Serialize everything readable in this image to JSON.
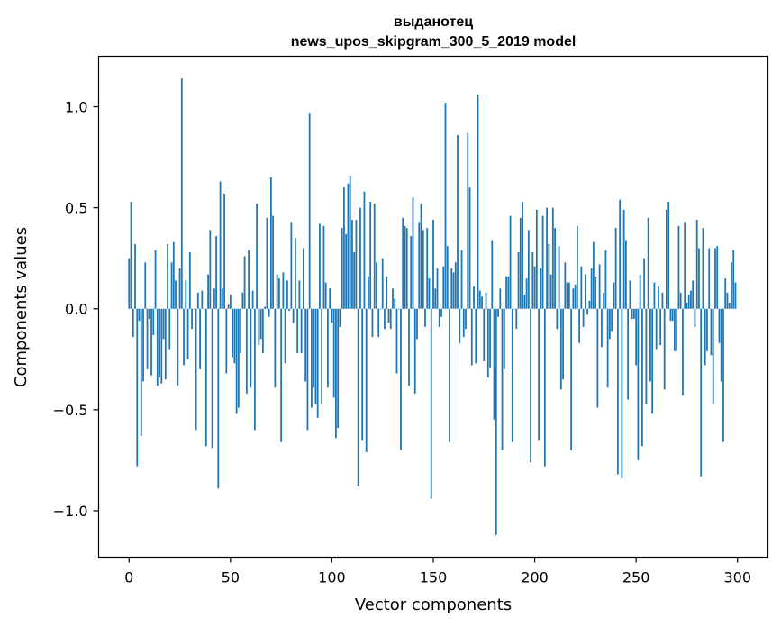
{
  "chart_data": {
    "type": "bar",
    "title": "выданотец",
    "subtitle": "news_upos_skipgram_300_5_2019 model",
    "xlabel": "Vector components",
    "ylabel": "Components values",
    "xlim": [
      -15,
      315
    ],
    "ylim": [
      -1.23,
      1.25
    ],
    "xticks": [
      0,
      50,
      100,
      150,
      200,
      250,
      300
    ],
    "yticks": [
      -1.0,
      -0.5,
      0.0,
      0.5,
      1.0
    ],
    "xtick_labels": [
      "0",
      "50",
      "100",
      "150",
      "200",
      "250",
      "300"
    ],
    "ytick_labels": [
      "−1.0",
      "−0.5",
      "0.0",
      "0.5",
      "1.0"
    ],
    "bar_color": "#1f77b4",
    "grid": false,
    "x": "0..299",
    "values": [
      0.25,
      0.53,
      -0.14,
      0.32,
      -0.78,
      -0.06,
      -0.63,
      -0.36,
      0.23,
      -0.3,
      -0.05,
      -0.33,
      -0.13,
      0.29,
      -0.38,
      -0.34,
      -0.37,
      -0.15,
      -0.35,
      0.32,
      -0.2,
      0.23,
      0.33,
      0.14,
      -0.38,
      0.2,
      1.14,
      -0.28,
      0.14,
      -0.25,
      0.28,
      -0.1,
      0.0,
      -0.6,
      0.08,
      -0.3,
      0.09,
      0.0,
      -0.68,
      0.17,
      0.39,
      -0.69,
      0.1,
      0.36,
      -0.89,
      0.63,
      0.1,
      0.57,
      -0.32,
      0.02,
      0.07,
      -0.24,
      -0.27,
      -0.52,
      -0.49,
      -0.22,
      0.08,
      0.26,
      -0.42,
      0.29,
      -0.39,
      0.09,
      -0.6,
      0.52,
      -0.18,
      -0.15,
      -0.22,
      0.01,
      0.45,
      -0.04,
      0.65,
      0.46,
      -0.39,
      0.17,
      0.15,
      -0.66,
      0.18,
      -0.27,
      0.14,
      -0.01,
      0.43,
      -0.07,
      0.35,
      -0.22,
      0.14,
      -0.22,
      0.3,
      -0.36,
      -0.6,
      0.97,
      -0.49,
      -0.39,
      -0.47,
      -0.54,
      0.42,
      -0.47,
      0.41,
      0.13,
      -0.39,
      0.1,
      -0.07,
      -0.44,
      -0.64,
      -0.59,
      -0.09,
      0.4,
      0.6,
      0.37,
      0.62,
      0.66,
      0.44,
      0.28,
      0.44,
      -0.88,
      0.5,
      -0.65,
      0.58,
      -0.71,
      0.16,
      0.53,
      -0.14,
      0.52,
      0.23,
      -0.14,
      0.0,
      0.25,
      -0.1,
      0.16,
      -0.07,
      -0.1,
      0.1,
      0.05,
      -0.32,
      0.0,
      -0.7,
      0.45,
      0.41,
      0.4,
      -0.38,
      0.36,
      0.55,
      -0.42,
      -0.15,
      0.43,
      0.52,
      0.39,
      -0.09,
      0.4,
      0.15,
      -0.94,
      0.44,
      0.1,
      0.2,
      -0.09,
      -0.04,
      0.21,
      1.02,
      0.31,
      -0.66,
      0.2,
      0.18,
      0.23,
      0.86,
      -0.17,
      0.29,
      -0.14,
      -0.1,
      0.87,
      0.6,
      -0.28,
      0.11,
      -0.27,
      1.06,
      0.09,
      0.06,
      -0.26,
      0.08,
      -0.34,
      -0.29,
      0.34,
      -0.55,
      -1.12,
      -0.04,
      0.1,
      -0.7,
      -0.3,
      0.16,
      0.16,
      0.46,
      -0.66,
      0.0,
      -0.1,
      0.28,
      0.45,
      0.53,
      0.07,
      0.15,
      0.39,
      -0.76,
      0.28,
      0.21,
      0.49,
      -0.65,
      0.2,
      0.46,
      -0.78,
      0.5,
      0.32,
      0.17,
      0.5,
      0.4,
      -0.1,
      0.31,
      -0.4,
      -0.35,
      0.23,
      0.13,
      0.13,
      -0.7,
      0.1,
      0.12,
      0.41,
      -0.17,
      0.21,
      -0.09,
      0.17,
      -0.03,
      0.04,
      0.2,
      0.33,
      0.16,
      -0.49,
      0.22,
      -0.19,
      0.08,
      0.29,
      -0.39,
      -0.15,
      -0.11,
      0.13,
      0.4,
      -0.82,
      0.54,
      -0.84,
      0.49,
      0.34,
      -0.45,
      0.14,
      -0.05,
      -0.05,
      -0.28,
      -0.75,
      0.17,
      -0.68,
      0.25,
      -0.47,
      0.45,
      -0.36,
      -0.52,
      0.13,
      -0.2,
      0.11,
      -0.18,
      0.08,
      -0.4,
      0.49,
      0.53,
      -0.06,
      -0.06,
      -0.21,
      -0.21,
      0.41,
      0.08,
      -0.43,
      0.43,
      0.03,
      0.07,
      0.09,
      0.14,
      -0.09,
      0.44,
      0.3,
      -0.83,
      0.4,
      -0.28,
      -0.21,
      0.3,
      -0.23,
      -0.47,
      0.3,
      0.31,
      -0.17,
      -0.36,
      -0.66,
      0.15,
      0.08,
      0.03,
      0.23,
      0.29,
      0.13
    ]
  }
}
